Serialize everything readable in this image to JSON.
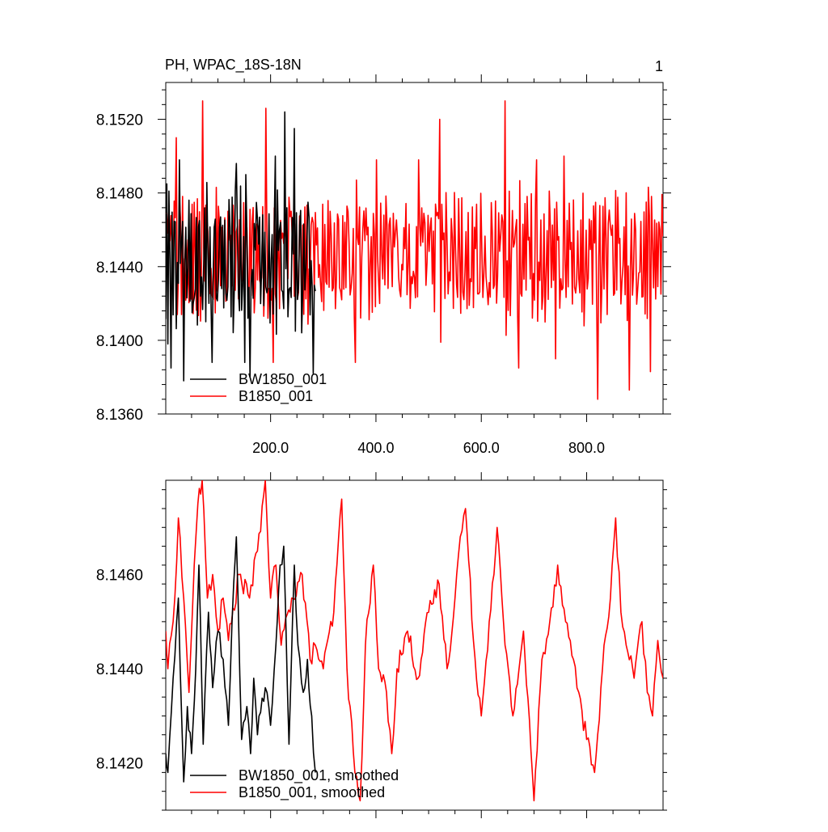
{
  "figure": {
    "title_left": "PH, WPAC_18S-18N",
    "title_right": "1"
  },
  "colors": {
    "BW1850_001": "#000000",
    "B1850_001": "#ff0000"
  },
  "chart_data": [
    {
      "type": "line",
      "panel": "top",
      "title": "PH, WPAC_18S-18N",
      "xlim": [
        1,
        945
      ],
      "ylim": [
        8.136,
        8.154
      ],
      "xticks": [
        200,
        400,
        600,
        800
      ],
      "xtick_labels": [
        "200.0",
        "400.0",
        "600.0",
        "800.0"
      ],
      "yticks": [
        8.136,
        8.14,
        8.144,
        8.148,
        8.152
      ],
      "ytick_labels": [
        "8.1360",
        "8.1400",
        "8.1440",
        "8.1480",
        "8.1520"
      ],
      "legend": {
        "placement": "bottom-left",
        "entries": [
          "BW1850_001",
          "B1850_001"
        ]
      },
      "series": [
        {
          "name": "BW1850_001",
          "color": "#000000",
          "x_start": 1,
          "x_end": 285,
          "mean": 8.1444,
          "amplitude": 0.0026,
          "min": 8.1378,
          "max": 8.1524,
          "peaks": [
            [
              5,
              8.1398
            ],
            [
              10,
              8.1385
            ],
            [
              27,
              8.1498
            ],
            [
              35,
              8.1378
            ],
            [
              88,
              8.1388
            ],
            [
              135,
              8.1496
            ],
            [
              150,
              8.1388
            ],
            [
              153,
              8.149
            ],
            [
              160,
              8.138
            ],
            [
              208,
              8.15
            ],
            [
              227,
              8.1524
            ],
            [
              245,
              8.1515
            ],
            [
              280,
              8.1382
            ]
          ]
        },
        {
          "name": "B1850_001",
          "color": "#ff0000",
          "x_start": 1,
          "x_end": 945,
          "mean": 8.1446,
          "amplitude": 0.0024,
          "min": 8.1368,
          "max": 8.153,
          "peaks": [
            [
              20,
              8.151
            ],
            [
              70,
              8.153
            ],
            [
              190,
              8.1526
            ],
            [
              205,
              8.1388
            ],
            [
              360,
              8.1388
            ],
            [
              400,
              8.1498
            ],
            [
              480,
              8.1498
            ],
            [
              520,
              8.152
            ],
            [
              645,
              8.153
            ],
            [
              670,
              8.1385
            ],
            [
              705,
              8.1498
            ],
            [
              740,
              8.139
            ],
            [
              757,
              8.15
            ],
            [
              820,
              8.1368
            ],
            [
              880,
              8.1373
            ],
            [
              920,
              8.1383
            ]
          ]
        }
      ]
    },
    {
      "type": "line",
      "panel": "bottom",
      "title": "",
      "xlim": [
        1,
        945
      ],
      "ylim": [
        8.141,
        8.148
      ],
      "yticks": [
        8.142,
        8.144,
        8.146
      ],
      "ytick_labels": [
        "8.1420",
        "8.1440",
        "8.1460"
      ],
      "legend": {
        "placement": "bottom-left",
        "entries": [
          "BW1850_001, smoothed",
          "B1850_001, smoothed"
        ]
      },
      "series": [
        {
          "name": "BW1850_001, smoothed",
          "color": "#000000",
          "x_start": 1,
          "x_end": 285,
          "points": [
            [
              1,
              8.1422
            ],
            [
              5,
              8.1418
            ],
            [
              15,
              8.1438
            ],
            [
              25,
              8.1455
            ],
            [
              35,
              8.1416
            ],
            [
              42,
              8.1432
            ],
            [
              50,
              8.1422
            ],
            [
              58,
              8.144
            ],
            [
              64,
              8.1462
            ],
            [
              72,
              8.1424
            ],
            [
              82,
              8.1452
            ],
            [
              90,
              8.1436
            ],
            [
              100,
              8.1448
            ],
            [
              110,
              8.1442
            ],
            [
              120,
              8.1428
            ],
            [
              130,
              8.1458
            ],
            [
              135,
              8.1468
            ],
            [
              145,
              8.1425
            ],
            [
              155,
              8.1432
            ],
            [
              162,
              8.1422
            ],
            [
              168,
              8.1438
            ],
            [
              175,
              8.1426
            ],
            [
              190,
              8.1436
            ],
            [
              200,
              8.1428
            ],
            [
              210,
              8.1445
            ],
            [
              218,
              8.1462
            ],
            [
              225,
              8.1466
            ],
            [
              235,
              8.1424
            ],
            [
              245,
              8.1462
            ],
            [
              252,
              8.1445
            ],
            [
              262,
              8.1435
            ],
            [
              270,
              8.1442
            ],
            [
              278,
              8.143
            ],
            [
              285,
              8.1418
            ]
          ]
        },
        {
          "name": "B1850_001, smoothed",
          "color": "#ff0000",
          "x_start": 1,
          "x_end": 945,
          "points": [
            [
              1,
              8.1448
            ],
            [
              5,
              8.144
            ],
            [
              15,
              8.145
            ],
            [
              25,
              8.1472
            ],
            [
              35,
              8.1455
            ],
            [
              45,
              8.1435
            ],
            [
              55,
              8.1462
            ],
            [
              62,
              8.1475
            ],
            [
              70,
              8.148
            ],
            [
              80,
              8.1455
            ],
            [
              90,
              8.146
            ],
            [
              100,
              8.1448
            ],
            [
              110,
              8.1455
            ],
            [
              120,
              8.1446
            ],
            [
              140,
              8.146
            ],
            [
              160,
              8.1455
            ],
            [
              175,
              8.1465
            ],
            [
              190,
              8.148
            ],
            [
              200,
              8.1455
            ],
            [
              210,
              8.1462
            ],
            [
              220,
              8.1445
            ],
            [
              240,
              8.1455
            ],
            [
              260,
              8.146
            ],
            [
              275,
              8.1442
            ],
            [
              285,
              8.1445
            ],
            [
              300,
              8.144
            ],
            [
              320,
              8.1452
            ],
            [
              335,
              8.1476
            ],
            [
              345,
              8.144
            ],
            [
              360,
              8.1418
            ],
            [
              370,
              8.1412
            ],
            [
              380,
              8.1445
            ],
            [
              395,
              8.1462
            ],
            [
              405,
              8.144
            ],
            [
              420,
              8.1435
            ],
            [
              430,
              8.1422
            ],
            [
              440,
              8.144
            ],
            [
              460,
              8.1448
            ],
            [
              480,
              8.1438
            ],
            [
              500,
              8.1452
            ],
            [
              520,
              8.1458
            ],
            [
              535,
              8.144
            ],
            [
              550,
              8.1455
            ],
            [
              560,
              8.1468
            ],
            [
              570,
              8.1474
            ],
            [
              585,
              8.1446
            ],
            [
              600,
              8.143
            ],
            [
              615,
              8.145
            ],
            [
              630,
              8.147
            ],
            [
              645,
              8.1445
            ],
            [
              660,
              8.143
            ],
            [
              680,
              8.1448
            ],
            [
              700,
              8.1412
            ],
            [
              715,
              8.1442
            ],
            [
              730,
              8.145
            ],
            [
              745,
              8.1462
            ],
            [
              760,
              8.145
            ],
            [
              775,
              8.1442
            ],
            [
              785,
              8.1435
            ],
            [
              800,
              8.1425
            ],
            [
              815,
              8.1418
            ],
            [
              830,
              8.144
            ],
            [
              845,
              8.1455
            ],
            [
              855,
              8.1472
            ],
            [
              865,
              8.1452
            ],
            [
              875,
              8.1445
            ],
            [
              890,
              8.1438
            ],
            [
              905,
              8.145
            ],
            [
              915,
              8.1435
            ],
            [
              925,
              8.143
            ],
            [
              935,
              8.1446
            ],
            [
              945,
              8.1438
            ]
          ]
        }
      ]
    }
  ]
}
